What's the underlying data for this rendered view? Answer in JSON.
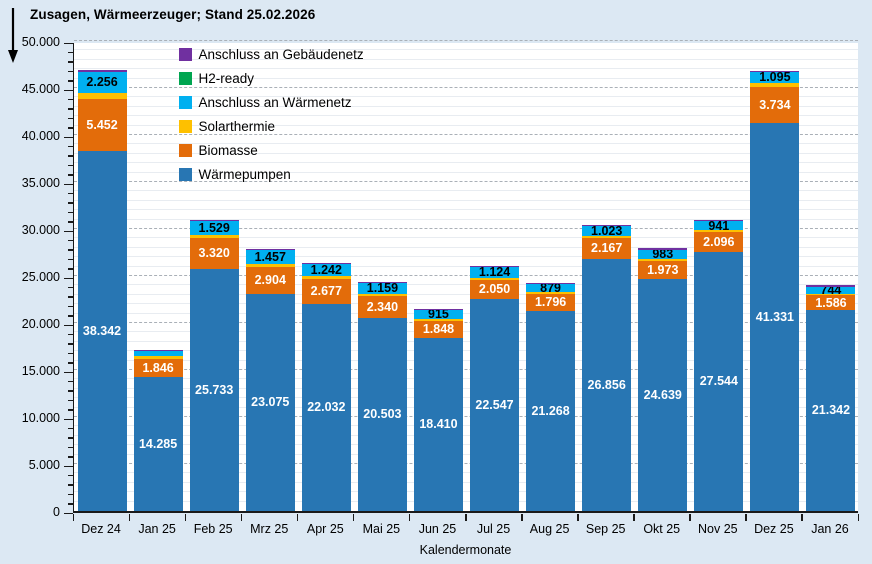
{
  "header": {
    "title": "Zusagen, Wärmeerzeuger; Stand 25.02.2026"
  },
  "icons": {
    "down_arrow": "down-arrow-icon"
  },
  "colors": {
    "background": "#dce8f3",
    "plot_background": "#ffffff",
    "axis": "#1a1a1a",
    "gridline_minor": "#e8ecf1",
    "gridline_major": "#aab0b7"
  },
  "chart_data": {
    "type": "bar",
    "stacked": true,
    "title": "Zusagen, Wärmeerzeuger; Stand 25.02.2026",
    "xlabel": "Kalendermonate",
    "ylabel": "",
    "ylim": [
      0,
      50000
    ],
    "y_major_step": 5000,
    "y_minor_step": 1000,
    "grid": "on",
    "y_tick_labels": [
      "0",
      "5.000",
      "10.000",
      "15.000",
      "20.000",
      "25.000",
      "30.000",
      "35.000",
      "40.000",
      "45.000",
      "50.000"
    ],
    "categories": [
      "Dez 24",
      "Jan 25",
      "Feb 25",
      "Mrz 25",
      "Apr 25",
      "Mai 25",
      "Jun 25",
      "Jul 25",
      "Aug 25",
      "Sep 25",
      "Okt 25",
      "Nov 25",
      "Dez 25",
      "Jan 26"
    ],
    "series": [
      {
        "name": "Wärmepumpen",
        "color": "#2876b3",
        "label_color": "#ffffff",
        "values": [
          38342,
          14285,
          25733,
          23075,
          22032,
          20503,
          18410,
          22547,
          21268,
          26856,
          24639,
          27544,
          41331,
          21342
        ],
        "labels": [
          "38.342",
          "14.285",
          "25.733",
          "23.075",
          "22.032",
          "20.503",
          "18.410",
          "22.547",
          "21.268",
          "26.856",
          "24.639",
          "27.544",
          "41.331",
          "21.342"
        ]
      },
      {
        "name": "Biomasse",
        "color": "#e36c0a",
        "label_color": "#ffffff",
        "values": [
          5452,
          1846,
          3320,
          2904,
          2677,
          2340,
          1848,
          2050,
          1796,
          2167,
          1973,
          2096,
          3734,
          1586
        ],
        "labels": [
          "5.452",
          "1.846",
          "3.320",
          "2.904",
          "2.677",
          "2.340",
          "1.848",
          "2.050",
          "1.796",
          "2.167",
          "1.973",
          "2.096",
          "3.734",
          "1.586"
        ]
      },
      {
        "name": "Solarthermie",
        "color": "#fec000",
        "label_color": "#000000",
        "values_estimated": true,
        "values": [
          700,
          350,
          300,
          300,
          280,
          250,
          200,
          230,
          200,
          230,
          220,
          230,
          500,
          200
        ],
        "labels": [
          "",
          "",
          "",
          "",
          "",
          "",
          "",
          "",
          "",
          "",
          "",
          "",
          "",
          ""
        ]
      },
      {
        "name": "Anschluss an Wärmenetz",
        "color": "#00b0f0",
        "label_color": "#000000",
        "values": [
          2256,
          500,
          1529,
          1457,
          1242,
          1159,
          915,
          1124,
          879,
          1023,
          983,
          941,
          1095,
          744
        ],
        "labels": [
          "2.256",
          "",
          "1.529",
          "1.457",
          "1.242",
          "1.159",
          "915",
          "1.124",
          "879",
          "1.023",
          "983",
          "941",
          "1.095",
          "744"
        ]
      },
      {
        "name": "H2-ready",
        "color": "#00a550",
        "label_color": "#000000",
        "values_estimated": true,
        "values": [
          0,
          0,
          0,
          0,
          0,
          0,
          0,
          0,
          0,
          0,
          0,
          0,
          0,
          0
        ],
        "labels": [
          "",
          "",
          "",
          "",
          "",
          "",
          "",
          "",
          "",
          "",
          "",
          "",
          "",
          ""
        ]
      },
      {
        "name": "Anschluss an Gebäudenetz",
        "color": "#7030a0",
        "label_color": "#ffffff",
        "values_estimated": true,
        "values": [
          180,
          130,
          120,
          120,
          120,
          120,
          120,
          120,
          120,
          120,
          120,
          120,
          180,
          120
        ],
        "labels": [
          "",
          "",
          "",
          "",
          "",
          "",
          "",
          "",
          "",
          "",
          "",
          "",
          "",
          ""
        ]
      }
    ],
    "legend": [
      "Anschluss an Gebäudenetz",
      "H2-ready",
      "Anschluss an Wärmenetz",
      "Solarthermie",
      "Biomasse",
      "Wärmepumpen"
    ],
    "legend_position": "top-left-inside"
  }
}
